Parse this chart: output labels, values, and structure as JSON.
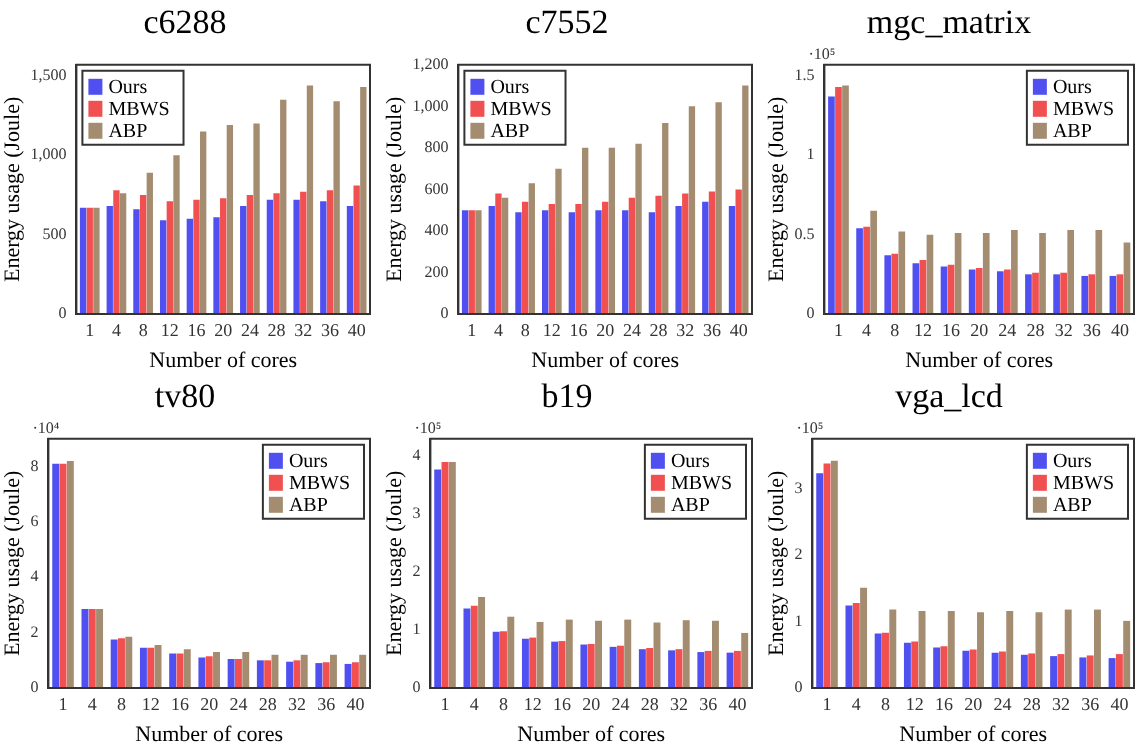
{
  "chart_data": [
    {
      "type": "bar",
      "title": "c6288",
      "xlabel": "Number of cores",
      "ylabel": "Energy usage (Joule)",
      "categories": [
        "1",
        "4",
        "8",
        "12",
        "16",
        "20",
        "24",
        "28",
        "32",
        "36",
        "40"
      ],
      "legend": "top left",
      "ylim": [
        0,
        1570
      ],
      "yticks": [
        0,
        500,
        {
          "value": 1000,
          "label": "1,000"
        },
        {
          "value": 1500,
          "label": "1,500"
        }
      ],
      "series": [
        {
          "name": "Ours",
          "color": "#5050f0",
          "values": [
            670,
            680,
            660,
            590,
            600,
            610,
            680,
            720,
            720,
            710,
            680
          ]
        },
        {
          "name": "MBWS",
          "color": "#f05050",
          "values": [
            670,
            780,
            750,
            710,
            720,
            730,
            750,
            760,
            770,
            780,
            810
          ]
        },
        {
          "name": "ABP",
          "color": "#a48c70",
          "values": [
            670,
            760,
            890,
            1000,
            1150,
            1190,
            1200,
            1350,
            1440,
            1340,
            1430
          ]
        }
      ]
    },
    {
      "type": "bar",
      "title": "c7552",
      "xlabel": "Number of cores",
      "ylabel": "Energy usage (Joule)",
      "categories": [
        "1",
        "4",
        "8",
        "12",
        "16",
        "20",
        "24",
        "28",
        "32",
        "36",
        "40"
      ],
      "legend": "top left",
      "ylim": [
        0,
        1200
      ],
      "yticks": [
        0,
        200,
        400,
        600,
        800,
        {
          "value": 1000,
          "label": "1,000"
        },
        {
          "value": 1200,
          "label": "1,200"
        }
      ],
      "series": [
        {
          "name": "Ours",
          "color": "#5050f0",
          "values": [
            500,
            520,
            490,
            500,
            490,
            500,
            500,
            490,
            520,
            540,
            520
          ]
        },
        {
          "name": "MBWS",
          "color": "#f05050",
          "values": [
            500,
            580,
            540,
            530,
            530,
            540,
            560,
            570,
            580,
            590,
            600
          ]
        },
        {
          "name": "ABP",
          "color": "#a48c70",
          "values": [
            500,
            560,
            630,
            700,
            800,
            800,
            820,
            920,
            1000,
            1020,
            1100
          ]
        }
      ]
    },
    {
      "type": "bar",
      "title": "mgc_matrix",
      "xlabel": "Number of cores",
      "ylabel": "Energy usage (Joule)",
      "annotations": [
        "·10⁵"
      ],
      "categories": [
        "1",
        "4",
        "8",
        "12",
        "16",
        "20",
        "24",
        "28",
        "32",
        "36",
        "40"
      ],
      "legend": "top right",
      "ylim": [
        0,
        1.57
      ],
      "yticks": [
        0,
        0.5,
        1,
        1.5
      ],
      "series": [
        {
          "name": "Ours",
          "color": "#5050f0",
          "values": [
            1.37,
            0.54,
            0.37,
            0.32,
            0.3,
            0.28,
            0.27,
            0.25,
            0.25,
            0.24,
            0.24
          ]
        },
        {
          "name": "MBWS",
          "color": "#f05050",
          "values": [
            1.43,
            0.55,
            0.38,
            0.34,
            0.31,
            0.29,
            0.28,
            0.26,
            0.26,
            0.25,
            0.25
          ]
        },
        {
          "name": "ABP",
          "color": "#a48c70",
          "values": [
            1.44,
            0.65,
            0.52,
            0.5,
            0.51,
            0.51,
            0.53,
            0.51,
            0.53,
            0.53,
            0.45
          ]
        }
      ]
    },
    {
      "type": "bar",
      "title": "tv80",
      "xlabel": "Number of cores",
      "ylabel": "Energy usage (Joule)",
      "annotations": [
        "·10⁴"
      ],
      "categories": [
        "1",
        "4",
        "8",
        "12",
        "16",
        "20",
        "24",
        "28",
        "32",
        "36",
        "40"
      ],
      "legend": "top right",
      "ylim": [
        0,
        9
      ],
      "yticks": [
        0,
        2,
        4,
        6,
        8
      ],
      "series": [
        {
          "name": "Ours",
          "color": "#5050f0",
          "values": [
            8.1,
            2.85,
            1.75,
            1.45,
            1.25,
            1.1,
            1.05,
            1.0,
            0.95,
            0.9,
            0.87
          ]
        },
        {
          "name": "MBWS",
          "color": "#f05050",
          "values": [
            8.1,
            2.85,
            1.8,
            1.45,
            1.25,
            1.15,
            1.05,
            1.0,
            1.0,
            0.93,
            0.93
          ]
        },
        {
          "name": "ABP",
          "color": "#a48c70",
          "values": [
            8.2,
            2.85,
            1.85,
            1.55,
            1.4,
            1.3,
            1.3,
            1.2,
            1.2,
            1.2,
            1.2
          ]
        }
      ]
    },
    {
      "type": "bar",
      "title": "b19",
      "xlabel": "Number of cores",
      "ylabel": "Energy usage (Joule)",
      "annotations": [
        "·10⁵"
      ],
      "categories": [
        "1",
        "4",
        "8",
        "12",
        "16",
        "20",
        "24",
        "28",
        "32",
        "36",
        "40"
      ],
      "legend": "top right",
      "ylim": [
        0,
        4.3
      ],
      "yticks": [
        0,
        1,
        2,
        3,
        4
      ],
      "series": [
        {
          "name": "Ours",
          "color": "#5050f0",
          "values": [
            3.77,
            1.37,
            0.97,
            0.85,
            0.8,
            0.75,
            0.71,
            0.67,
            0.65,
            0.62,
            0.61
          ]
        },
        {
          "name": "MBWS",
          "color": "#f05050",
          "values": [
            3.9,
            1.42,
            0.98,
            0.87,
            0.81,
            0.76,
            0.73,
            0.69,
            0.67,
            0.64,
            0.64
          ]
        },
        {
          "name": "ABP",
          "color": "#a48c70",
          "values": [
            3.9,
            1.57,
            1.23,
            1.14,
            1.18,
            1.16,
            1.18,
            1.13,
            1.17,
            1.16,
            0.95
          ]
        }
      ]
    },
    {
      "type": "bar",
      "title": "vga_lcd",
      "xlabel": "Number of cores",
      "ylabel": "Energy usage (Joule)",
      "annotations": [
        "·10⁵"
      ],
      "categories": [
        "1",
        "4",
        "8",
        "12",
        "16",
        "20",
        "24",
        "28",
        "32",
        "36",
        "40"
      ],
      "legend": "top right",
      "ylim": [
        0,
        3.75
      ],
      "yticks": [
        0,
        1,
        2,
        3
      ],
      "series": [
        {
          "name": "Ours",
          "color": "#5050f0",
          "values": [
            3.23,
            1.24,
            0.82,
            0.68,
            0.61,
            0.56,
            0.53,
            0.5,
            0.48,
            0.46,
            0.45
          ]
        },
        {
          "name": "MBWS",
          "color": "#f05050",
          "values": [
            3.38,
            1.28,
            0.83,
            0.7,
            0.63,
            0.58,
            0.55,
            0.52,
            0.51,
            0.49,
            0.51
          ]
        },
        {
          "name": "ABP",
          "color": "#a48c70",
          "values": [
            3.42,
            1.51,
            1.18,
            1.16,
            1.16,
            1.14,
            1.16,
            1.14,
            1.18,
            1.18,
            1.01
          ]
        }
      ]
    }
  ]
}
